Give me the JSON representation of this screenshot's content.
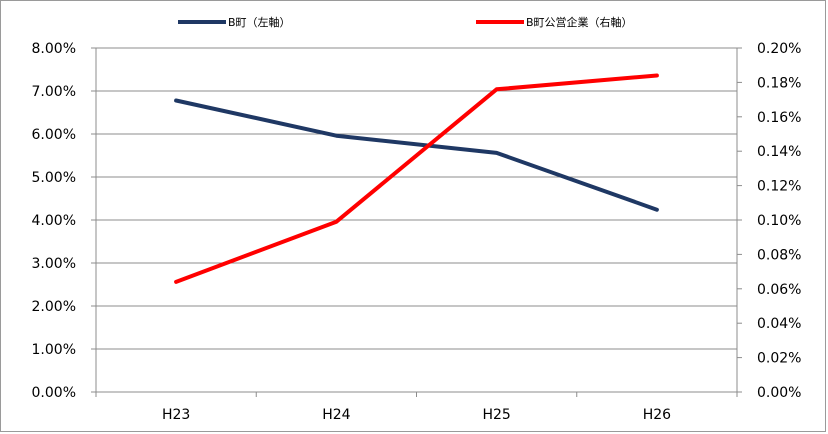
{
  "chart_data": {
    "type": "line",
    "categories": [
      "H23",
      "H24",
      "H25",
      "H26"
    ],
    "series": [
      {
        "name": "B町（左軸）",
        "axis": "left",
        "color": "#1f3864",
        "values": [
          0.0678,
          0.0596,
          0.0556,
          0.0424
        ]
      },
      {
        "name": "B町公営企業（右軸）",
        "axis": "right",
        "color": "#ff0000",
        "values": [
          0.00064,
          0.00099,
          0.00176,
          0.00184
        ]
      }
    ],
    "left_axis": {
      "ylim": [
        0,
        0.08
      ],
      "ticks": [
        0,
        0.01,
        0.02,
        0.03,
        0.04,
        0.05,
        0.06,
        0.07,
        0.08
      ],
      "tick_labels": [
        "0.00%",
        "1.00%",
        "2.00%",
        "3.00%",
        "4.00%",
        "5.00%",
        "6.00%",
        "7.00%",
        "8.00%"
      ]
    },
    "right_axis": {
      "ylim": [
        0,
        0.002
      ],
      "ticks": [
        0,
        0.0002,
        0.0004,
        0.0006,
        0.0008,
        0.001,
        0.0012,
        0.0014,
        0.0016,
        0.0018,
        0.002
      ],
      "tick_labels": [
        "0.00%",
        "0.02%",
        "0.04%",
        "0.06%",
        "0.08%",
        "0.10%",
        "0.12%",
        "0.14%",
        "0.16%",
        "0.18%",
        "0.20%"
      ]
    },
    "grid": true,
    "legend_position": "top"
  }
}
